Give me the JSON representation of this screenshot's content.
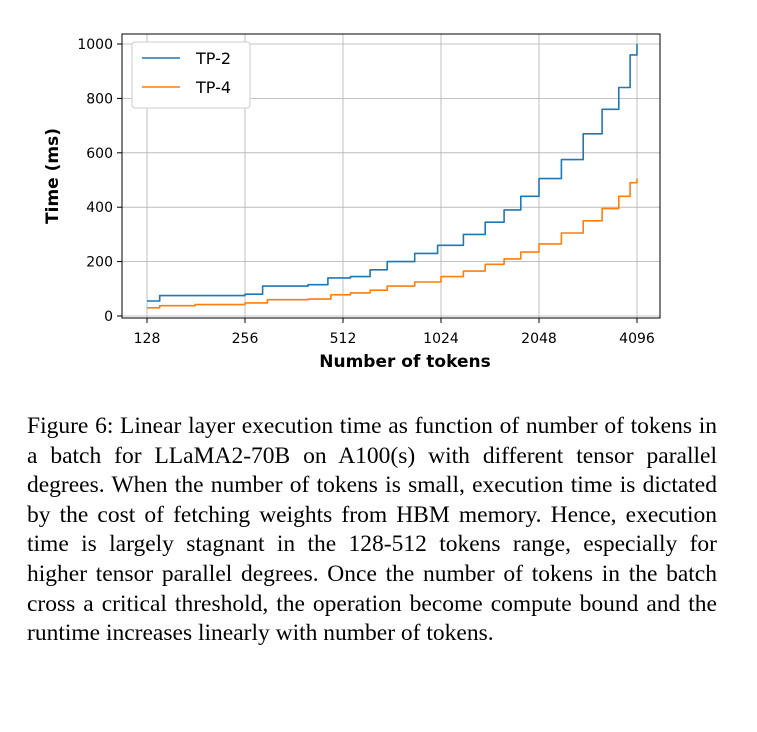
{
  "chart_data": {
    "type": "line",
    "x_scale": "log2",
    "xlabel": "Number of tokens",
    "ylabel": "Time (ms)",
    "xlim": [
      128,
      4096
    ],
    "ylim": [
      0,
      1000
    ],
    "x_ticks": [
      128,
      256,
      512,
      1024,
      2048,
      4096
    ],
    "y_ticks": [
      0,
      200,
      400,
      600,
      800,
      1000
    ],
    "grid": true,
    "legend_position": "top-left",
    "series": [
      {
        "name": "TP-2",
        "color": "#1f77b4",
        "x": [
          128,
          140,
          180,
          256,
          290,
          300,
          400,
          460,
          540,
          620,
          700,
          850,
          1000,
          1200,
          1400,
          1600,
          1800,
          2048,
          2400,
          2800,
          3200,
          3600,
          3900,
          4096
        ],
        "y": [
          55,
          75,
          75,
          80,
          110,
          110,
          115,
          140,
          145,
          170,
          200,
          230,
          260,
          300,
          345,
          390,
          440,
          505,
          575,
          670,
          760,
          840,
          960,
          1000
        ]
      },
      {
        "name": "TP-4",
        "color": "#ff7f0e",
        "x": [
          128,
          140,
          180,
          256,
          300,
          400,
          470,
          540,
          620,
          700,
          850,
          1024,
          1200,
          1400,
          1600,
          1800,
          2048,
          2400,
          2800,
          3200,
          3600,
          3900,
          4096
        ],
        "y": [
          30,
          38,
          42,
          48,
          60,
          62,
          78,
          85,
          95,
          110,
          125,
          145,
          165,
          190,
          210,
          235,
          265,
          305,
          350,
          395,
          440,
          490,
          505
        ]
      }
    ]
  },
  "caption": {
    "text": "Figure 6: Linear layer execution time as function of number of tokens in a batch for LLaMA2-70B on A100(s) with different tensor parallel degrees. When the number of tokens is small, execution time is dictated by the cost of fetching weights from HBM memory. Hence, execution time is largely stagnant in the 128-512 tokens range, especially for higher tensor parallel degrees. Once the number of tokens in the batch cross a critical threshold, the operation become compute bound and the runtime increases linearly with number of tokens."
  }
}
